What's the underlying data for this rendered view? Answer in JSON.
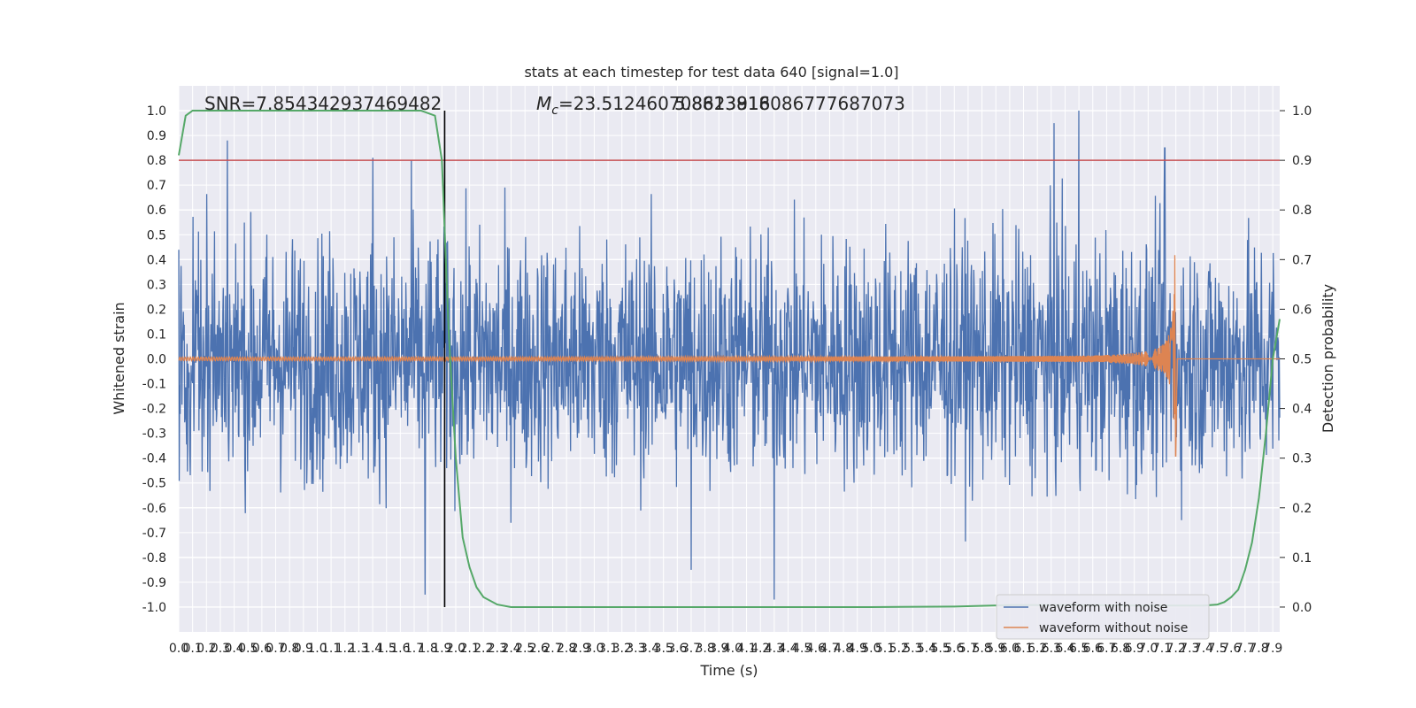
{
  "chart_data": {
    "type": "line",
    "title": "stats at each timestep for test data 640 [signal=1.0]",
    "xlabel": "Time (s)",
    "ylabel_left": "Whitened strain",
    "ylabel_right": "Detection probability",
    "xlim": [
      0.0,
      7.95
    ],
    "ylim_left": [
      -1.1,
      1.1
    ],
    "ylim_right": [
      -0.05,
      1.05
    ],
    "grid": true,
    "legend_position": "lower-right",
    "x_ticks": [
      "0.0",
      "0.1",
      "0.2",
      "0.3",
      "0.4",
      "0.5",
      "0.6",
      "0.7",
      "0.8",
      "0.9",
      "1.0",
      "1.1",
      "1.2",
      "1.3",
      "1.4",
      "1.5",
      "1.6",
      "1.7",
      "1.8",
      "1.9",
      "2.0",
      "2.1",
      "2.2",
      "2.3",
      "2.4",
      "2.5",
      "2.6",
      "2.7",
      "2.8",
      "2.9",
      "3.0",
      "3.1",
      "3.2",
      "3.3",
      "3.4",
      "3.5",
      "3.6",
      "3.7",
      "3.8",
      "3.9",
      "4.0",
      "4.1",
      "4.2",
      "4.3",
      "4.4",
      "4.5",
      "4.6",
      "4.7",
      "4.8",
      "4.9",
      "5.0",
      "5.1",
      "5.2",
      "5.3",
      "5.4",
      "5.5",
      "5.6",
      "5.7",
      "5.8",
      "5.9",
      "6.0",
      "6.1",
      "6.2",
      "6.3",
      "6.4",
      "6.5",
      "6.6",
      "6.7",
      "6.8",
      "6.9",
      "7.0",
      "7.1",
      "7.2",
      "7.3",
      "7.4",
      "7.5",
      "7.6",
      "7.7",
      "7.8",
      "7.9"
    ],
    "y_ticks_left": [
      "-1.0",
      "-0.9",
      "-0.8",
      "-0.7",
      "-0.6",
      "-0.5",
      "-0.4",
      "-0.3",
      "-0.2",
      "-0.1",
      "0.0",
      "0.1",
      "0.2",
      "0.3",
      "0.4",
      "0.5",
      "0.6",
      "0.7",
      "0.8",
      "0.9",
      "1.0"
    ],
    "y_ticks_right": [
      "0.0",
      "0.1",
      "0.2",
      "0.3",
      "0.4",
      "0.5",
      "0.6",
      "0.7",
      "0.8",
      "0.9",
      "1.0"
    ],
    "annotations": {
      "snr": "SNR=7.854342937469482",
      "mc": "=23.512460708623916",
      "mc_symbol": "M",
      "mc_subscript": "c",
      "overlap": "5.8813818086777687073"
    },
    "threshold": {
      "value": 0.9,
      "color": "#c44e52"
    },
    "event_time": 1.92,
    "series": [
      {
        "name": "waveform with noise",
        "color": "#4c72b0",
        "axis": "left",
        "description": "noise band roughly +/-0.45 with peaks up to 1.0 and troughs to -0.95",
        "amplitude": 0.45,
        "peaks": [
          [
            0.35,
            0.88
          ],
          [
            1.4,
            0.81
          ],
          [
            1.68,
            0.8
          ],
          [
            6.32,
            0.95
          ],
          [
            6.5,
            1.0
          ],
          [
            7.12,
            0.85
          ],
          [
            4.3,
            -0.97
          ],
          [
            1.78,
            -0.95
          ],
          [
            3.7,
            -0.85
          ]
        ]
      },
      {
        "name": "waveform without noise",
        "color": "#dd8452",
        "axis": "left",
        "description": "chirp growing in amplitude and frequency, merging near 7.2 s",
        "merger_time": 7.2,
        "peak_amplitude_max": 0.4,
        "peak_amplitude_min": -0.45
      },
      {
        "name": "",
        "color": "#55a868",
        "axis": "right",
        "x": [
          0.0,
          0.05,
          0.1,
          0.2,
          0.5,
          1.0,
          1.5,
          1.75,
          1.85,
          1.9,
          1.95,
          2.0,
          2.05,
          2.1,
          2.15,
          2.2,
          2.3,
          2.4,
          2.6,
          3.0,
          4.0,
          5.0,
          5.6,
          6.0,
          6.5,
          7.0,
          7.4,
          7.5,
          7.55,
          7.6,
          7.65,
          7.7,
          7.75,
          7.8,
          7.85,
          7.9,
          7.95
        ],
        "y": [
          0.91,
          0.99,
          1.0,
          1.0,
          1.0,
          1.0,
          1.0,
          1.0,
          0.99,
          0.9,
          0.55,
          0.3,
          0.14,
          0.08,
          0.04,
          0.02,
          0.005,
          0.0,
          0.0,
          0.0,
          0.0,
          0.0,
          0.001,
          0.004,
          0.004,
          0.003,
          0.003,
          0.005,
          0.01,
          0.02,
          0.035,
          0.075,
          0.13,
          0.22,
          0.35,
          0.5,
          0.58
        ]
      }
    ]
  }
}
